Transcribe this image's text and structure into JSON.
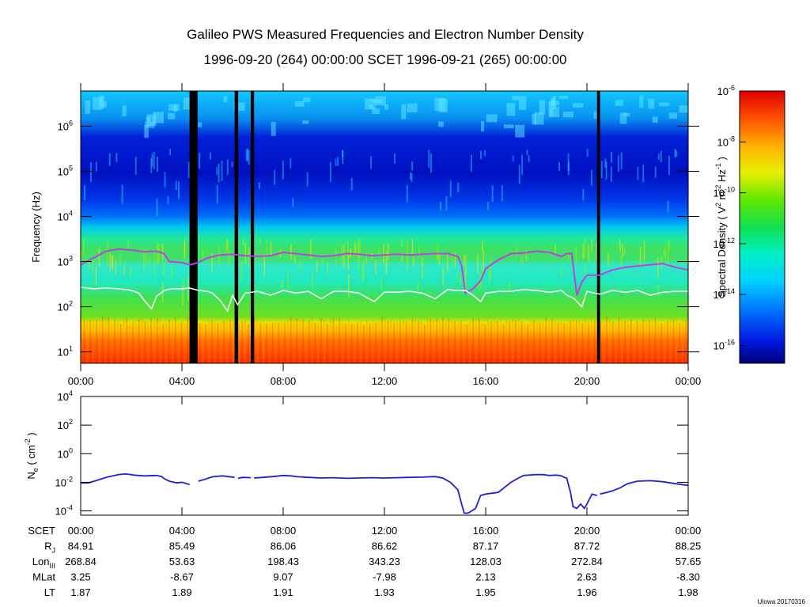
{
  "figure": {
    "title": "Galileo PWS Measured Frequencies and Electron Number Density",
    "subtitle": "1996-09-20 (264) 00:00:00 SCET 1996-09-21 (265) 00:00:00",
    "credit": "UIowa 20170316"
  },
  "colors": {
    "density_line": "#1f1fd6",
    "upper_freq_line": "#c040e0",
    "lower_freq_line": "#ffffff",
    "data_gap": "#000000"
  },
  "chart_data": [
    {
      "type": "heatmap",
      "name": "spectrogram",
      "ylabel": "Frequency (Hz)",
      "yscale": "log",
      "ylim": [
        5.6,
        6000000
      ],
      "y_ticks": [
        {
          "value": 10,
          "base": "10",
          "exp": "1"
        },
        {
          "value": 100,
          "base": "10",
          "exp": "2"
        },
        {
          "value": 1000,
          "base": "10",
          "exp": "3"
        },
        {
          "value": 10000,
          "base": "10",
          "exp": "4"
        },
        {
          "value": 100000,
          "base": "10",
          "exp": "5"
        },
        {
          "value": 1000000,
          "base": "10",
          "exp": "6"
        }
      ],
      "x_range_hours": [
        0,
        24
      ],
      "x_ticks": [
        {
          "hour": 0,
          "label": "00:00"
        },
        {
          "hour": 4,
          "label": "04:00"
        },
        {
          "hour": 8,
          "label": "08:00"
        },
        {
          "hour": 12,
          "label": "12:00"
        },
        {
          "hour": 16,
          "label": "16:00"
        },
        {
          "hour": 20,
          "label": "20:00"
        },
        {
          "hour": 24,
          "label": "00:00"
        }
      ],
      "colorbar": {
        "label": "Spectral Density ( V2 m-2 Hz-1 )",
        "scale": "log",
        "range": [
          2e-17,
          1e-06
        ],
        "ticks": [
          {
            "value": 1e-06,
            "base": "10",
            "exp": "-6"
          },
          {
            "value": 1e-08,
            "base": "10",
            "exp": "-8"
          },
          {
            "value": 1e-10,
            "base": "10",
            "exp": "-10"
          },
          {
            "value": 1e-12,
            "base": "10",
            "exp": "-12"
          },
          {
            "value": 1e-14,
            "base": "10",
            "exp": "-14"
          },
          {
            "value": 1e-16,
            "base": "10",
            "exp": "-16"
          }
        ]
      },
      "data_gaps_hours": [
        [
          4.3,
          4.62
        ],
        [
          6.08,
          6.22
        ],
        [
          6.72,
          6.85
        ],
        [
          20.4,
          20.52
        ]
      ],
      "upper_line": {
        "hours": [
          0,
          0.5,
          1,
          1.5,
          2,
          2.5,
          3,
          3.3,
          3.5,
          4,
          4.3,
          4.65,
          5,
          5.5,
          6,
          6.5,
          7,
          7.5,
          8,
          8.5,
          9,
          9.5,
          10,
          10.5,
          11,
          11.5,
          12,
          12.5,
          13,
          13.5,
          14,
          14.5,
          14.9,
          15.05,
          15.2,
          15.5,
          15.8,
          16,
          16.5,
          17,
          17.5,
          18,
          18.5,
          19,
          19.2,
          19.4,
          19.6,
          19.8,
          20,
          20.5,
          21,
          21.5,
          22,
          22.5,
          23,
          23.5,
          24
        ],
        "values": [
          850,
          1200,
          1700,
          1900,
          1800,
          1650,
          1700,
          1500,
          1000,
          950,
          850,
          950,
          1200,
          1400,
          1450,
          1350,
          1300,
          1350,
          1600,
          1500,
          1400,
          1300,
          1350,
          1500,
          1450,
          1350,
          1400,
          1450,
          1400,
          1450,
          1500,
          1500,
          1300,
          800,
          200,
          250,
          380,
          700,
          1100,
          1500,
          1550,
          1700,
          1600,
          1300,
          1500,
          1500,
          180,
          350,
          500,
          500,
          650,
          750,
          800,
          850,
          900,
          750,
          650
        ]
      },
      "lower_line": {
        "hours": [
          0,
          0.5,
          1,
          1.5,
          2,
          2.3,
          2.5,
          2.8,
          3,
          3.3,
          3.6,
          4,
          4.3,
          4.65,
          5,
          5.2,
          5.5,
          5.8,
          6,
          6.2,
          6.5,
          7,
          7.5,
          8,
          8.5,
          9,
          9.5,
          10,
          10.5,
          11,
          11.3,
          11.6,
          12,
          12.5,
          13,
          13.5,
          14,
          14.5,
          14.8,
          15.2,
          15.5,
          15.8,
          16,
          16.5,
          17,
          17.5,
          18,
          18.5,
          19,
          19.2,
          19.5,
          19.8,
          20,
          20.5,
          21,
          21.5,
          22,
          22.5,
          23,
          23.5,
          24
        ],
        "values": [
          270,
          250,
          260,
          250,
          230,
          200,
          140,
          90,
          170,
          230,
          250,
          250,
          260,
          230,
          220,
          200,
          140,
          80,
          180,
          110,
          200,
          220,
          180,
          230,
          200,
          220,
          150,
          220,
          220,
          200,
          160,
          130,
          210,
          210,
          220,
          200,
          150,
          240,
          230,
          230,
          180,
          130,
          200,
          220,
          220,
          240,
          230,
          210,
          230,
          180,
          150,
          100,
          220,
          190,
          230,
          210,
          230,
          180,
          210,
          220,
          220
        ]
      }
    },
    {
      "type": "line",
      "name": "electron_density",
      "ylabel": "Ne ( cm-2 )",
      "yscale": "log",
      "ylim": [
        5e-05,
        10000
      ],
      "y_ticks": [
        {
          "value": 10000,
          "base": "10",
          "exp": "4"
        },
        {
          "value": 100,
          "base": "10",
          "exp": "2"
        },
        {
          "value": 1,
          "base": "10",
          "exp": "0"
        },
        {
          "value": 0.01,
          "base": "10",
          "exp": "-2"
        },
        {
          "value": 0.0001,
          "base": "10",
          "exp": "-4"
        }
      ],
      "x_range_hours": [
        0,
        24
      ],
      "series": [
        {
          "segments": [
            {
              "x": [
                0,
                0.3,
                0.6,
                1,
                1.5,
                1.8,
                2.1,
                2.5,
                3,
                3.2,
                3.3,
                3.5,
                3.8,
                4,
                4.3
              ],
              "y": [
                0.009,
                0.009,
                0.013,
                0.022,
                0.035,
                0.038,
                0.032,
                0.028,
                0.03,
                0.025,
                0.018,
                0.012,
                0.009,
                0.01,
                0.007
              ]
            },
            {
              "x": [
                4.65,
                4.9,
                5.2,
                5.6,
                6.08
              ],
              "y": [
                0.012,
                0.016,
                0.024,
                0.028,
                0.022
              ]
            },
            {
              "x": [
                6.22,
                6.4,
                6.72
              ],
              "y": [
                0.019,
                0.022,
                0.021
              ]
            },
            {
              "x": [
                6.85,
                7.2,
                7.6,
                8,
                8.3,
                8.6,
                9,
                9.5,
                10,
                10.5,
                11,
                11.5,
                12,
                12.5,
                13,
                13.5,
                14,
                14.3,
                14.6,
                14.9,
                15.05,
                15.15,
                15.3,
                15.45,
                15.6,
                15.8,
                16,
                16.5,
                17,
                17.3,
                17.5,
                18,
                18.3,
                18.5,
                18.8,
                19,
                19.1,
                19.2,
                19.35,
                19.45,
                19.6,
                19.75,
                19.9,
                20,
                20.2,
                20.4
              ],
              "y": [
                0.02,
                0.022,
                0.025,
                0.03,
                0.028,
                0.024,
                0.022,
                0.02,
                0.021,
                0.019,
                0.02,
                0.021,
                0.02,
                0.021,
                0.022,
                0.023,
                0.025,
                0.02,
                0.01,
                0.003,
                0.0003,
                7e-05,
                7e-05,
                0.0001,
                0.00015,
                0.0012,
                0.0015,
                0.002,
                0.01,
                0.02,
                0.03,
                0.035,
                0.034,
                0.03,
                0.032,
                0.028,
                0.022,
                0.02,
                0.002,
                0.0002,
                0.00015,
                0.0003,
                0.00015,
                0.0003,
                0.0015,
                0.0012
              ]
            },
            {
              "x": [
                20.52,
                20.8,
                21,
                21.3,
                21.6,
                22,
                22.5,
                23,
                23.5,
                24
              ],
              "y": [
                0.0015,
                0.002,
                0.0025,
                0.004,
                0.008,
                0.012,
                0.013,
                0.011,
                0.008,
                0.006
              ]
            }
          ]
        }
      ]
    }
  ],
  "ephemeris": {
    "rows": [
      {
        "label": "SCET",
        "sub": "",
        "values": [
          "00:00",
          "04:00",
          "08:00",
          "12:00",
          "16:00",
          "20:00",
          "00:00"
        ]
      },
      {
        "label": "R",
        "sub": "J",
        "values": [
          "84.91",
          "85.49",
          "86.06",
          "86.62",
          "87.17",
          "87.72",
          "88.25"
        ]
      },
      {
        "label": "Lon",
        "sub": "III",
        "values": [
          "268.84",
          "53.63",
          "198.43",
          "343.23",
          "128.03",
          "272.84",
          "57.65"
        ]
      },
      {
        "label": "MLat",
        "sub": "",
        "values": [
          "3.25",
          "-8.67",
          "9.07",
          "-7.98",
          "2.13",
          "2.63",
          "-8.30"
        ]
      },
      {
        "label": "LT",
        "sub": "",
        "values": [
          "1.87",
          "1.89",
          "1.91",
          "1.93",
          "1.95",
          "1.96",
          "1.98"
        ]
      }
    ]
  }
}
